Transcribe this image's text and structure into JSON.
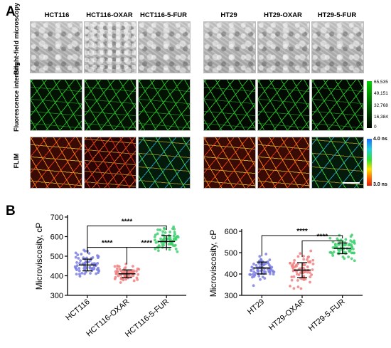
{
  "panel_a": {
    "letter": "A",
    "columns_left": [
      "HCT116",
      "HCT116-OXAR",
      "HCT116-5-FUR"
    ],
    "columns_right": [
      "HT29",
      "HT29-OXAR",
      "HT29-5-FUR"
    ],
    "row_labels": [
      "Bright-field microscopy",
      "Fluorescence intensity",
      "FLIM"
    ],
    "intensity_colorbar": {
      "ticks": [
        "65,535",
        "49,151",
        "32,768",
        "16,384",
        "0"
      ],
      "colors": [
        "#000000",
        "#00d200"
      ]
    },
    "flim_colorbar": {
      "top": "4.0 ns",
      "bottom": "3.0 ns",
      "colors": [
        "#1a6cff",
        "#20d0e0",
        "#30e030",
        "#ffe000",
        "#ff6000",
        "#e02010"
      ]
    }
  },
  "panel_b": {
    "letter": "B"
  },
  "chart_data": [
    {
      "type": "scatter",
      "ylabel": "Microviscosity, cP",
      "categories": [
        "HCT116",
        "HCT116-OXAR",
        "HCT116-5-FUR"
      ],
      "ylim": [
        300,
        700
      ],
      "yticks": [
        300,
        400,
        500,
        600,
        700
      ],
      "series": [
        {
          "category": "HCT116",
          "mean": 455,
          "sd": 30,
          "color": "#7b7fe0"
        },
        {
          "category": "HCT116-OXAR",
          "mean": 410,
          "sd": 20,
          "color": "#f08080"
        },
        {
          "category": "HCT116-5-FUR",
          "mean": 575,
          "sd": 30,
          "color": "#40d070"
        }
      ],
      "significance": [
        {
          "from": 0,
          "to": 2,
          "label": "****",
          "y": 655
        },
        {
          "from": 0,
          "to": 1,
          "label": "****",
          "y": 545
        },
        {
          "from": 1,
          "to": 2,
          "label": "****",
          "y": 545
        }
      ]
    },
    {
      "type": "scatter",
      "ylabel": "Microviscosity, cP",
      "categories": [
        "HT29",
        "HT29-OXAR",
        "HT29-5-FUR"
      ],
      "ylim": [
        300,
        600
      ],
      "yticks": [
        300,
        400,
        500,
        600
      ],
      "series": [
        {
          "category": "HT29",
          "mean": 428,
          "sd": 28,
          "color": "#7b7fe0"
        },
        {
          "category": "HT29-OXAR",
          "mean": 418,
          "sd": 35,
          "color": "#f08080"
        },
        {
          "category": "HT29-5-FUR",
          "mean": 520,
          "sd": 25,
          "color": "#40d070"
        }
      ],
      "significance": [
        {
          "from": 0,
          "to": 2,
          "label": "****",
          "y": 580
        },
        {
          "from": 1,
          "to": 2,
          "label": "****",
          "y": 555
        }
      ]
    }
  ]
}
